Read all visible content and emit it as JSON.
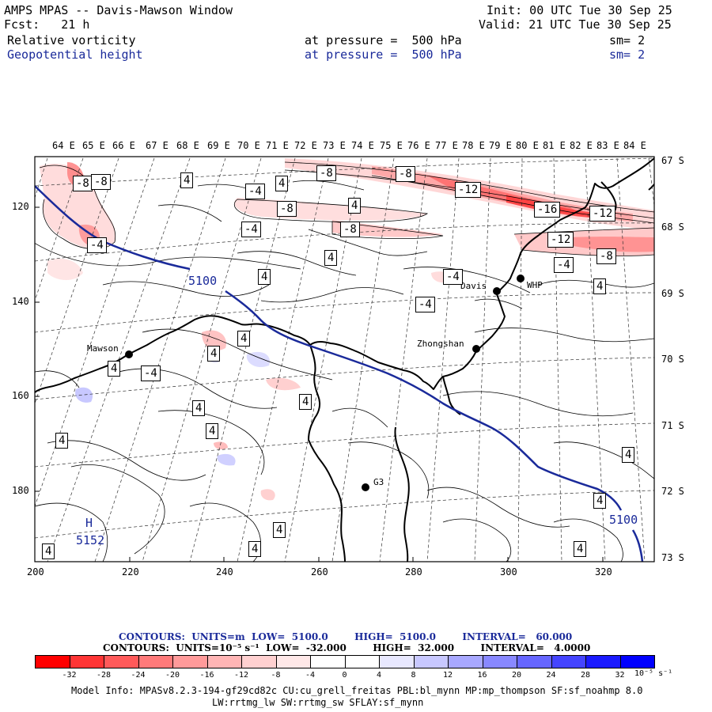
{
  "header": {
    "title": "AMPS MPAS -- Davis-Mawson Window",
    "init": "Init: 00 UTC Tue 30 Sep 25",
    "fcst": "Fcst:   21 h",
    "valid": "Valid: 21 UTC Tue 30 Sep 25",
    "field1": {
      "name": "Relative vorticity",
      "level": "at pressure =  500 hPa",
      "sm": "sm= 2"
    },
    "field2": {
      "name": "Geopotential height",
      "level": "at pressure =  500 hPa",
      "sm": "sm= 2"
    }
  },
  "axes": {
    "top_lon": [
      "64 E",
      "65 E",
      "66 E",
      "67 E",
      "68 E",
      "69 E",
      "70 E",
      "71 E",
      "72 E",
      "73 E",
      "74 E",
      "75 E",
      "76 E",
      "77 E",
      "78 E",
      "79 E",
      "80 E",
      "81 E",
      "82 E",
      "83 E",
      "84 E"
    ],
    "right_lat": [
      "67 S",
      "68 S",
      "69 S",
      "70 S",
      "71 S",
      "72 S",
      "73 S"
    ],
    "left_y": [
      "120",
      "140",
      "160",
      "180"
    ],
    "bottom_x": [
      "200",
      "220",
      "240",
      "260",
      "280",
      "300",
      "320"
    ]
  },
  "stations": [
    {
      "name": "Davis"
    },
    {
      "name": "WHP"
    },
    {
      "name": "Zhongshan"
    },
    {
      "name": "Mawson"
    },
    {
      "name": "G3"
    }
  ],
  "height_labels": [
    "5100",
    "5100",
    "5152"
  ],
  "high_marker": "H",
  "vort_labels": [
    "-8",
    "-8",
    "-8",
    "-12",
    "-16",
    "-12",
    "-12",
    "-8",
    "-4",
    "-4",
    "-4",
    "-4",
    "-4",
    "-4",
    "-8",
    "-8",
    "4",
    "4",
    "4",
    "4",
    "4",
    "4",
    "4",
    "4",
    "4",
    "4",
    "4",
    "4",
    "4",
    "4",
    "4",
    "4",
    "4",
    "4",
    "4",
    "-4",
    "-8"
  ],
  "contours": {
    "line1": "CONTOURS:  UNITS=m  LOW=  5100.0        HIGH=  5100.0        INTERVAL=   60.000",
    "line2": "CONTOURS:  UNITS=10⁻⁵ s⁻¹  LOW=  -32.000        HIGH=  32.000        INTERVAL=   4.0000"
  },
  "colorbar": {
    "ticks": [
      "-32",
      "-28",
      "-24",
      "-20",
      "-16",
      "-12",
      "-8",
      "-4",
      "0",
      "4",
      "8",
      "12",
      "16",
      "20",
      "24",
      "28",
      "32"
    ],
    "unit": "10⁻⁵ s⁻¹",
    "colors": [
      "#ff0000",
      "#ff3535",
      "#ff5a5a",
      "#ff7a7a",
      "#ff9a9a",
      "#ffb5b5",
      "#ffd0d0",
      "#ffe8e8",
      "#ffffff",
      "#ffffff",
      "#e8e8ff",
      "#c8c8ff",
      "#a8a8ff",
      "#8888ff",
      "#6666ff",
      "#4444ff",
      "#1a1aff",
      "#0000ff"
    ]
  },
  "model_info": {
    "line1": "Model Info: MPASv8.2.3-194-gf29cd82c CU:cu_grell_freitas PBL:bl_mynn MP:mp_thompson SF:sf_noahmp 8.0",
    "line2": "LW:rrtmg_lw SW:rrtmg_sw SFLAY:sf_mynn"
  }
}
